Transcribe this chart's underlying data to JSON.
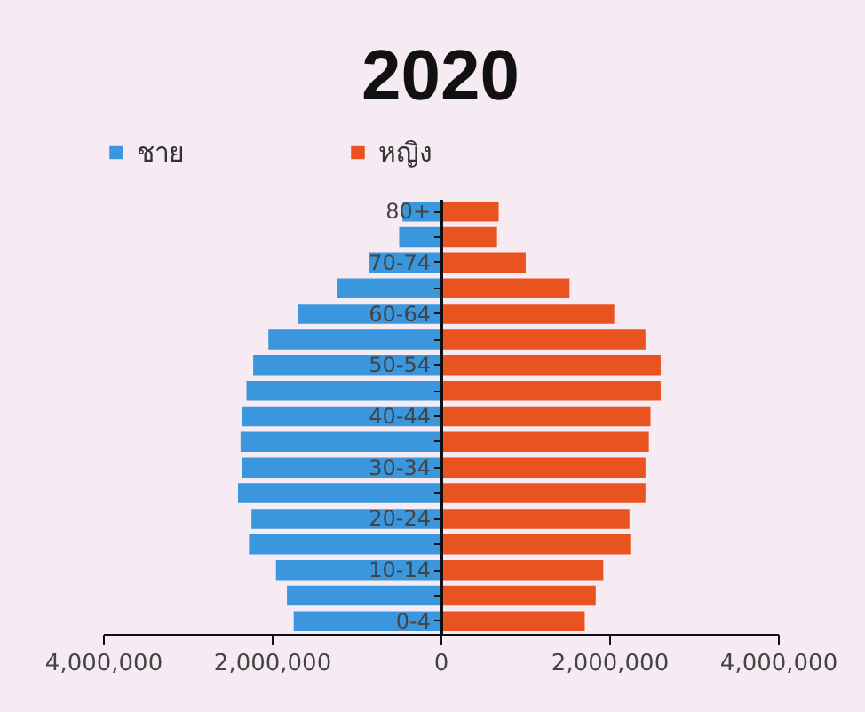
{
  "chart_data": {
    "type": "bar",
    "orientation": "horizontal",
    "title": "2020",
    "categories": [
      "80+",
      null,
      "70-74",
      null,
      "60-64",
      null,
      "50-54",
      null,
      "40-44",
      null,
      "30-34",
      null,
      "20-24",
      null,
      "10-14",
      null,
      "0-4"
    ],
    "series": [
      {
        "name": "ชาย",
        "color": "#3a97de",
        "values": [
          -450000,
          -490000,
          -850000,
          -1230000,
          -1690000,
          -2040000,
          -2220000,
          -2300000,
          -2350000,
          -2370000,
          -2350000,
          -2400000,
          -2240000,
          -2270000,
          -1950000,
          -1820000,
          -1740000
        ]
      },
      {
        "name": "หญิง",
        "color": "#e9531f",
        "values": [
          690000,
          670000,
          1010000,
          1530000,
          2060000,
          2430000,
          2610000,
          2610000,
          2490000,
          2470000,
          2430000,
          2430000,
          2240000,
          2250000,
          1930000,
          1840000,
          1710000
        ]
      }
    ],
    "xlim": [
      -4000000,
      4000000
    ],
    "xticks": [
      {
        "value": -4000000,
        "label": "4,000,000"
      },
      {
        "value": -2000000,
        "label": "2,000,000"
      },
      0,
      {
        "value": 2000000,
        "label": "2,000,000"
      },
      {
        "value": 4000000,
        "label": "4,000,000"
      }
    ],
    "grid": false,
    "legend": "top",
    "stacked": true
  }
}
